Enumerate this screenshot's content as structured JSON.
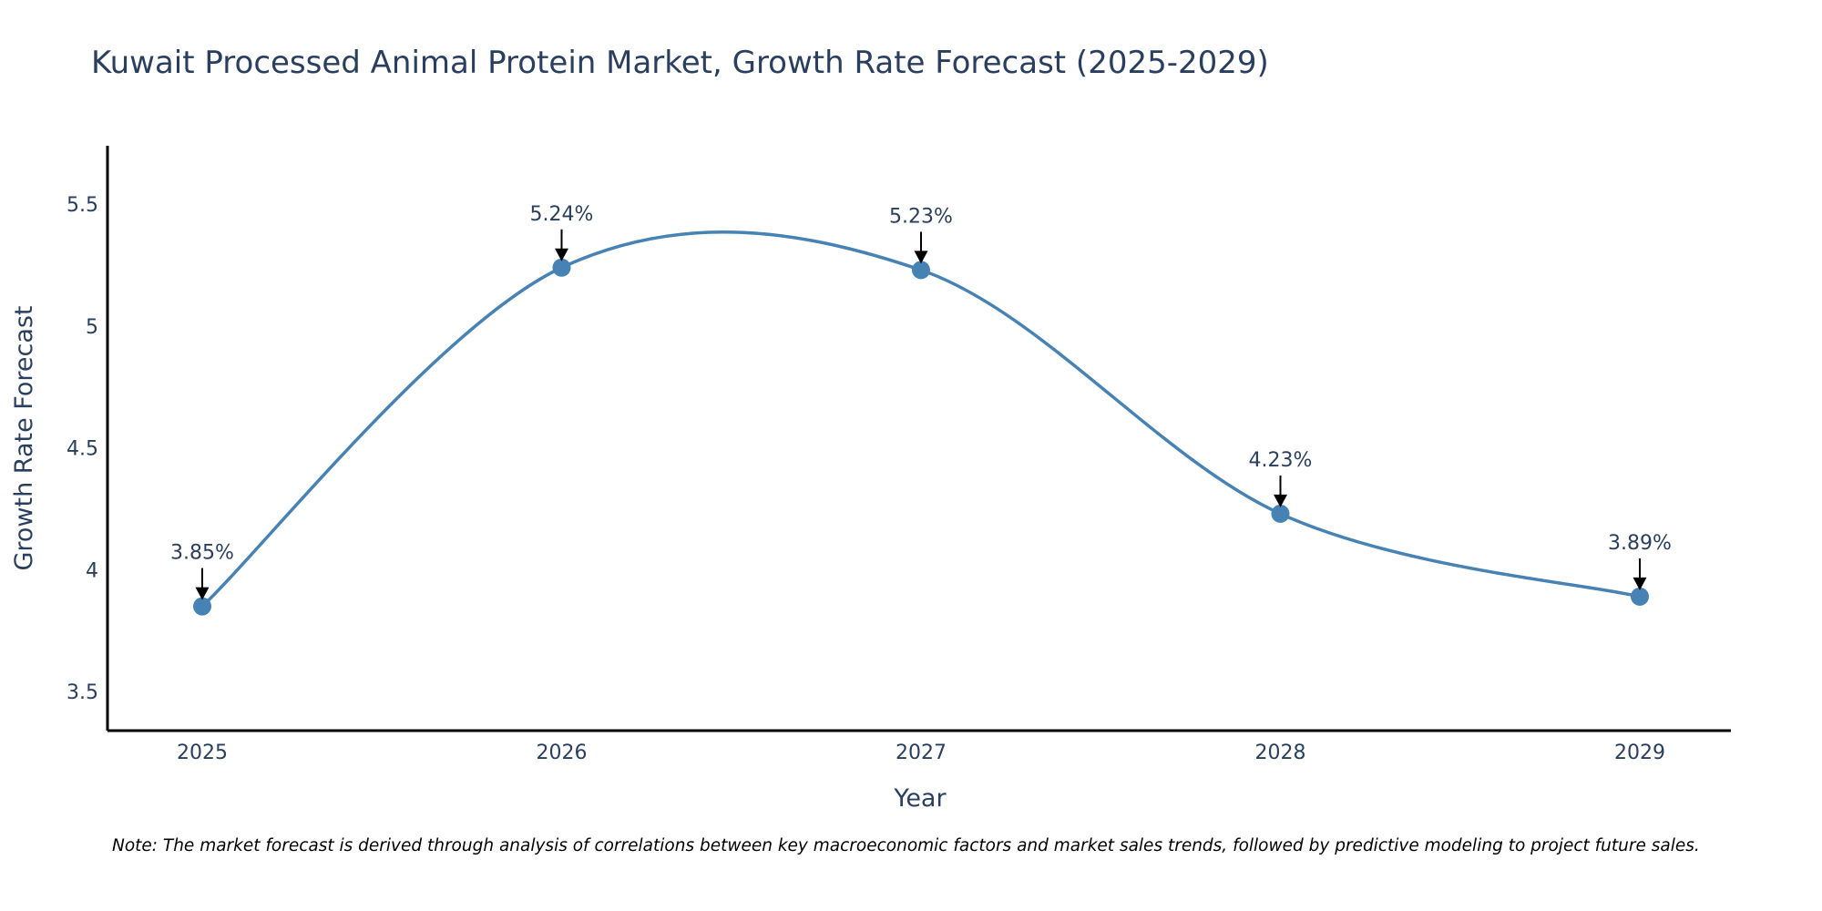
{
  "colors": {
    "line": "#4682B4",
    "marker": "#4682B4",
    "arrow": "#000000",
    "text": "#2a3f5f",
    "axis": "#000000",
    "background": "#ffffff"
  },
  "chart_data": {
    "type": "line",
    "title": "Kuwait Processed Animal Protein Market, Growth Rate Forecast (2025-2029)",
    "xlabel": "Year",
    "ylabel": "Growth Rate Forecast",
    "categories": [
      "2025",
      "2026",
      "2027",
      "2028",
      "2029"
    ],
    "series": [
      {
        "name": "Growth Rate Forecast",
        "values": [
          3.85,
          5.24,
          5.23,
          4.23,
          3.89
        ],
        "line_shape": "spline",
        "markers": true
      }
    ],
    "data_labels": [
      "3.85%",
      "5.24%",
      "5.23%",
      "4.23%",
      "3.89%"
    ],
    "yticks": [
      3.5,
      4,
      4.5,
      5,
      5.5
    ],
    "ytick_labels": [
      "3.5",
      "4",
      "4.5",
      "5",
      "5.5"
    ],
    "ylim": [
      3.34,
      5.74
    ],
    "grid": false,
    "legend": "none"
  },
  "note": "Note: The market forecast is derived through analysis of correlations between key macroeconomic factors and market sales trends, followed by predictive modeling to project future sales."
}
